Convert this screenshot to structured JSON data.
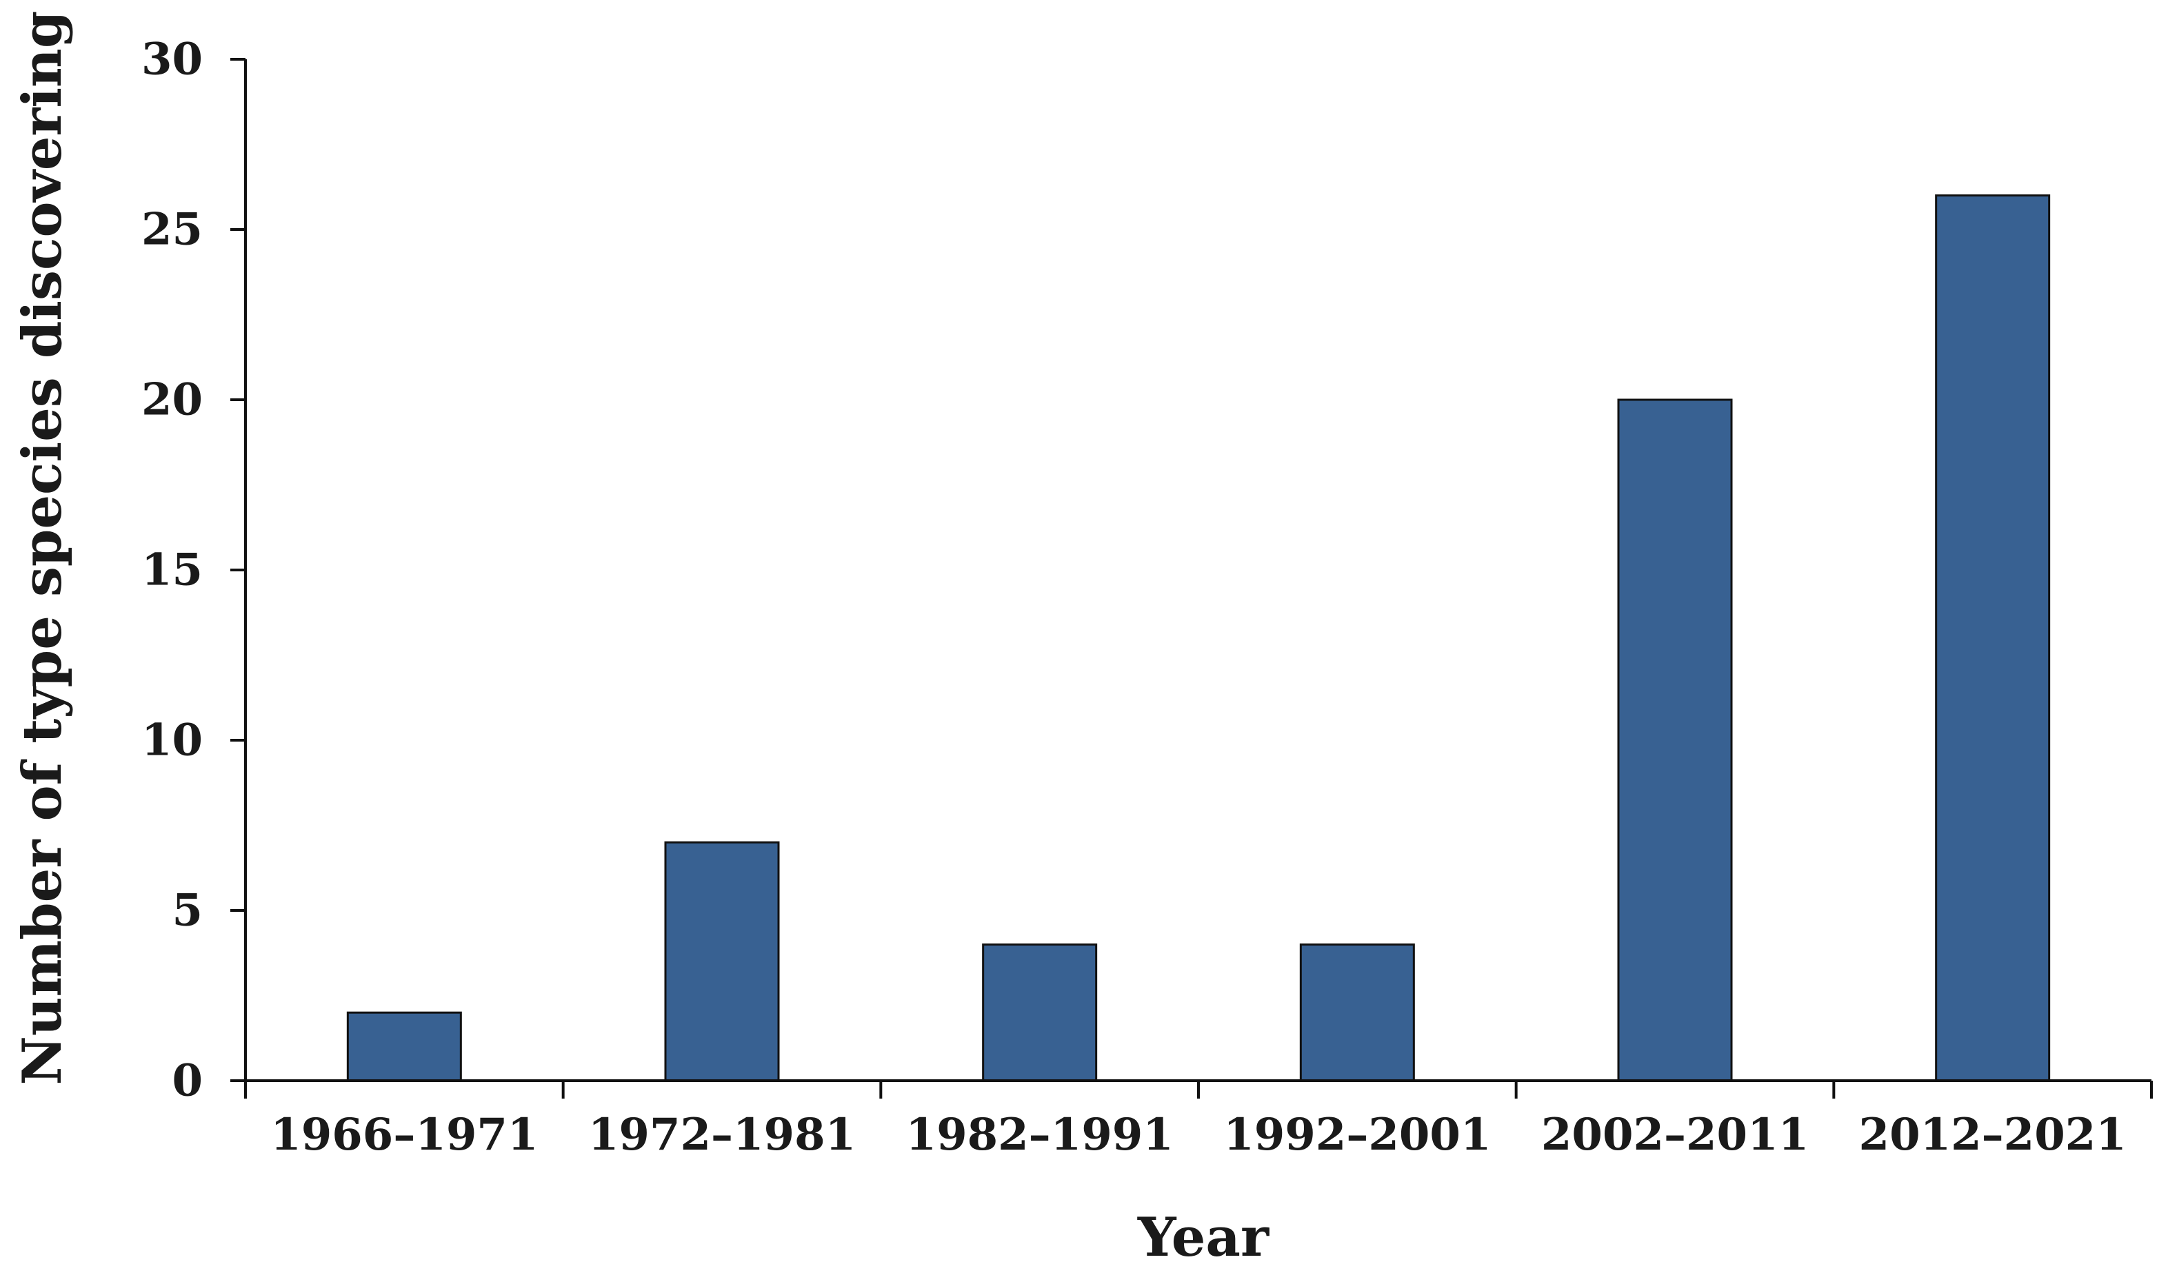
{
  "chart_data": {
    "type": "bar",
    "categories": [
      "1966–1971",
      "1972–1981",
      "1982–1991",
      "1992–2001",
      "2002–2011",
      "2012–2021"
    ],
    "values": [
      2,
      7,
      4,
      4,
      20,
      26
    ],
    "title": "",
    "xlabel": "Year",
    "ylabel": "Number of type species discovering",
    "ylim": [
      0,
      30
    ],
    "yticks": [
      0,
      5,
      10,
      15,
      20,
      25,
      30
    ],
    "grid": false,
    "legend": "none",
    "bar_color": "#386192",
    "bar_edge_color": "#111111",
    "axis_color": "#111111"
  }
}
